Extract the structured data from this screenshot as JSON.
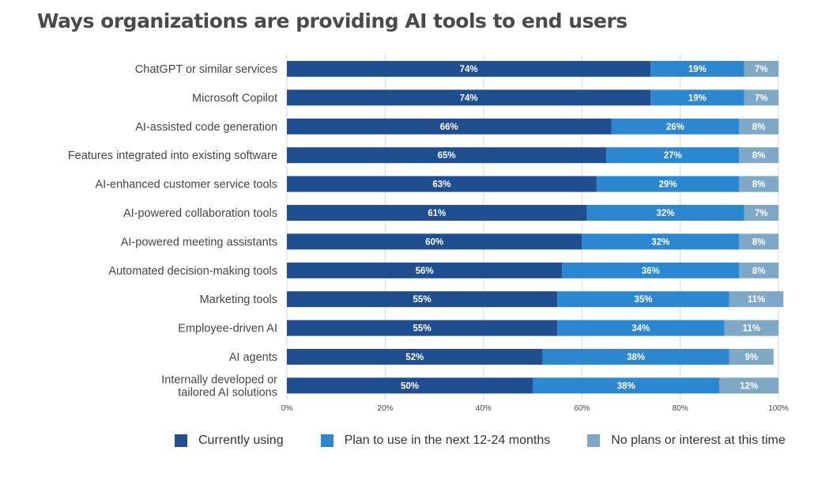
{
  "title": "Ways organizations are providing AI tools to end users",
  "colors": {
    "currently_using": "#1f4e91",
    "plan_to_use": "#2b88d0",
    "no_plans": "#7ea8c6",
    "grid": "#d9d9d9",
    "label_text": "#444444",
    "title_text": "#4a4a4a"
  },
  "chart_data": {
    "type": "bar",
    "orientation": "horizontal",
    "stacked": true,
    "title": "Ways organizations are providing AI tools to end users",
    "categories": [
      "ChatGPT or similar services",
      "Microsoft Copilot",
      "AI-assisted code generation",
      "Features integrated into existing software",
      "AI-enhanced customer service tools",
      "AI-powered collaboration tools",
      "AI-powered meeting assistants",
      "Automated decision-making tools",
      "Marketing tools",
      "Employee-driven AI",
      "AI agents",
      "Internally developed or tailored AI solutions"
    ],
    "category_lines": [
      [
        "ChatGPT or similar services"
      ],
      [
        "Microsoft Copilot"
      ],
      [
        "AI-assisted code generation"
      ],
      [
        "Features integrated into existing software"
      ],
      [
        "AI-enhanced customer service tools"
      ],
      [
        "AI-powered collaboration tools"
      ],
      [
        "AI-powered meeting assistants"
      ],
      [
        "Automated decision-making tools"
      ],
      [
        "Marketing tools"
      ],
      [
        "Employee-driven AI"
      ],
      [
        "AI agents"
      ],
      [
        "Internally developed or",
        "tailored AI solutions"
      ]
    ],
    "series": [
      {
        "name": "Currently using",
        "values": [
          74,
          74,
          66,
          65,
          63,
          61,
          60,
          56,
          55,
          55,
          52,
          50
        ]
      },
      {
        "name": "Plan to use in the next 12-24 months",
        "values": [
          19,
          19,
          26,
          27,
          29,
          32,
          32,
          36,
          35,
          34,
          38,
          38
        ]
      },
      {
        "name": "No plans or interest at this time",
        "values": [
          7,
          7,
          8,
          8,
          8,
          7,
          8,
          8,
          11,
          11,
          9,
          12
        ]
      }
    ],
    "xlim": [
      0,
      100
    ],
    "x_ticks": [
      "0%",
      "20%",
      "40%",
      "60%",
      "80%",
      "100%"
    ],
    "value_suffix": "%",
    "grid": true,
    "legend_position": "bottom"
  }
}
